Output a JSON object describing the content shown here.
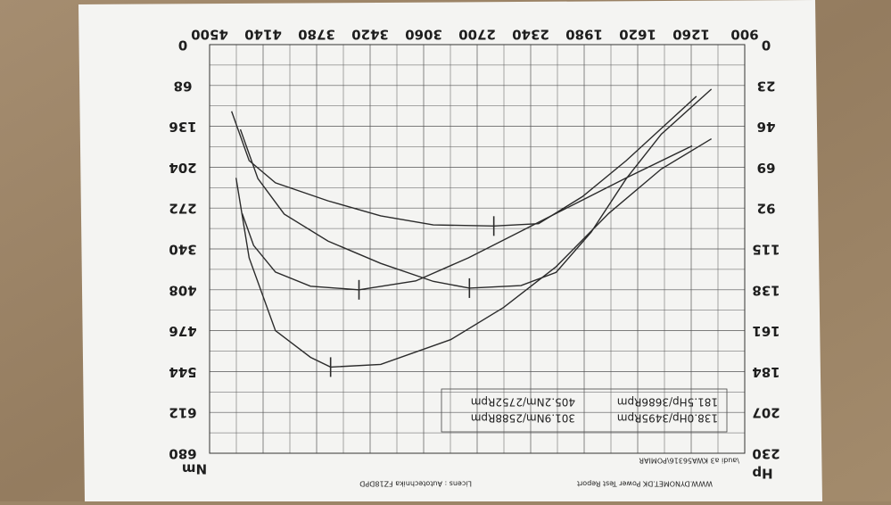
{
  "header": {
    "title": "WWW.DYNOMET.DK  Power Test Report",
    "license": "Licens :  Autotechnika  FZ18DPD"
  },
  "chart_data": {
    "type": "line",
    "subtitle": "\\audi a3 KWA56316\\POMIAR",
    "ylabel": "Hp",
    "y2label": "Nm",
    "xlim": [
      900,
      4500
    ],
    "xticks": [
      900,
      1260,
      1620,
      1980,
      2340,
      2700,
      3060,
      3420,
      3780,
      4140,
      4500
    ],
    "ylim": [
      0,
      230
    ],
    "yticks": [
      0,
      23,
      46,
      69,
      92,
      115,
      138,
      161,
      184,
      207,
      230
    ],
    "y2lim": [
      0,
      680
    ],
    "y2ticks": [
      0,
      68,
      136,
      204,
      272,
      340,
      408,
      476,
      544,
      612,
      680
    ],
    "grid": true,
    "series": [
      {
        "color": "#2b2b2b",
        "x": [
          4322,
          4234,
          4057,
          3821,
          3686,
          3349,
          2877,
          2523,
          2169,
          1815,
          1461,
          1124
        ],
        "values": [
          75,
          120,
          161,
          176,
          181.5,
          180,
          166,
          148,
          125,
          95,
          70,
          53
        ]
      },
      {
        "color": "#2b2b2b",
        "x": [
          4281,
          4204,
          4057,
          3821,
          3495,
          3113,
          2759,
          2405,
          2051,
          1697,
          1254
        ],
        "values": [
          95,
          113,
          128,
          136,
          138,
          133,
          120,
          105,
          90,
          75,
          57
        ]
      },
      {
        "color": "#2b2b2b",
        "axis": "y2",
        "x": [
          4293,
          4175,
          3998,
          3703,
          3349,
          2995,
          2752,
          2405,
          2169,
          1933,
          1697,
          1461,
          1124
        ],
        "values": [
          141,
          223,
          282,
          327,
          364,
          394,
          405.2,
          401,
          379,
          312,
          223,
          149,
          74
        ]
      },
      {
        "color": "#2b2b2b",
        "axis": "y2",
        "x": [
          4352,
          4234,
          4057,
          3703,
          3349,
          2995,
          2588,
          2287,
          1992,
          1697,
          1225
        ],
        "values": [
          111,
          193,
          230,
          260,
          285,
          300,
          301.9,
          298,
          253,
          193,
          86
        ]
      }
    ],
    "annotations": [
      "138.0Hp/3495Rpm",
      "301.9Nm/2588Rpm",
      "181.5Hp/3686Rpm",
      "405.2Nm/2752Rpm"
    ]
  }
}
